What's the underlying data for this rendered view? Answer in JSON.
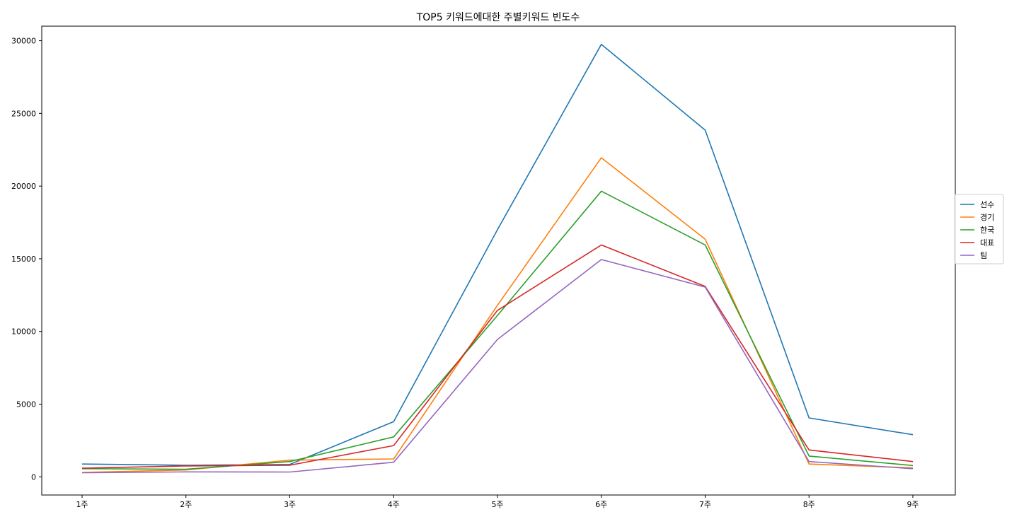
{
  "chart_data": {
    "type": "line",
    "title": "TOP5 키워드에대한 주별키워드 빈도수",
    "xlabel": "",
    "ylabel": "",
    "categories": [
      "1주",
      "2주",
      "3주",
      "4주",
      "5주",
      "6주",
      "7주",
      "8주",
      "9주"
    ],
    "yticks": [
      0,
      5000,
      10000,
      15000,
      20000,
      25000,
      30000
    ],
    "ylim": [
      -1250,
      31000
    ],
    "grid": false,
    "legend_position": "center-right",
    "series": [
      {
        "name": "선수",
        "color": "#1f77b4",
        "values": [
          880,
          800,
          850,
          3800,
          17000,
          29750,
          23850,
          4050,
          2900
        ]
      },
      {
        "name": "경기",
        "color": "#ff7f0e",
        "values": [
          300,
          470,
          1150,
          1230,
          11800,
          21950,
          16350,
          880,
          620
        ]
      },
      {
        "name": "한국",
        "color": "#2ca02c",
        "values": [
          560,
          520,
          1050,
          2750,
          11100,
          19650,
          15950,
          1430,
          780
        ]
      },
      {
        "name": "대표",
        "color": "#d62728",
        "values": [
          600,
          750,
          800,
          2150,
          11450,
          15950,
          13100,
          1850,
          1050
        ]
      },
      {
        "name": "팀",
        "color": "#9467bd",
        "values": [
          280,
          340,
          330,
          1000,
          9450,
          14950,
          13050,
          1050,
          560
        ]
      }
    ]
  }
}
